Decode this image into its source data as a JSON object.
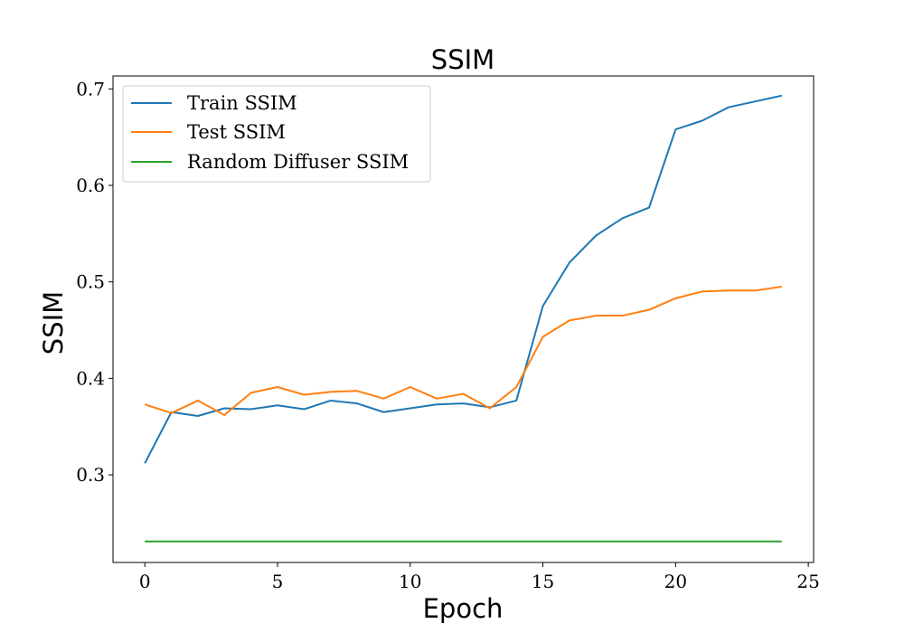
{
  "chart_data": {
    "type": "line",
    "title": "SSIM",
    "xlabel": "Epoch",
    "ylabel": "SSIM",
    "xlim": [
      -1.2,
      25.2
    ],
    "ylim": [
      0.2092,
      0.7134
    ],
    "xticks": [
      0,
      5,
      10,
      15,
      20,
      25
    ],
    "xtick_labels": [
      "0",
      "5",
      "10",
      "15",
      "20",
      "25"
    ],
    "yticks": [
      0.3,
      0.4,
      0.5,
      0.6,
      0.7
    ],
    "ytick_labels": [
      "0.3",
      "0.4",
      "0.5",
      "0.6",
      "0.7"
    ],
    "grid": false,
    "legend_position": "upper-left",
    "x": [
      0,
      1,
      2,
      3,
      4,
      5,
      6,
      7,
      8,
      9,
      10,
      11,
      12,
      13,
      14,
      15,
      16,
      17,
      18,
      19,
      20,
      21,
      22,
      23,
      24
    ],
    "series": [
      {
        "name": "Train SSIM",
        "color": "#1f77b4",
        "values": [
          0.312,
          0.365,
          0.361,
          0.369,
          0.368,
          0.372,
          0.368,
          0.377,
          0.374,
          0.365,
          0.369,
          0.373,
          0.374,
          0.37,
          0.377,
          0.475,
          0.52,
          0.548,
          0.566,
          0.577,
          0.658,
          0.667,
          0.681,
          0.687,
          0.693
        ]
      },
      {
        "name": "Test SSIM",
        "color": "#ff7f0e",
        "values": [
          0.373,
          0.364,
          0.377,
          0.362,
          0.385,
          0.391,
          0.383,
          0.386,
          0.387,
          0.379,
          0.391,
          0.379,
          0.384,
          0.369,
          0.391,
          0.443,
          0.46,
          0.465,
          0.465,
          0.471,
          0.483,
          0.49,
          0.491,
          0.491,
          0.495
        ]
      },
      {
        "name": "Random Diffuser SSIM",
        "color": "#2ca02c",
        "values": [
          0.231,
          0.231,
          0.231,
          0.231,
          0.231,
          0.231,
          0.231,
          0.231,
          0.231,
          0.231,
          0.231,
          0.231,
          0.231,
          0.231,
          0.231,
          0.231,
          0.231,
          0.231,
          0.231,
          0.231,
          0.231,
          0.231,
          0.231,
          0.231,
          0.231
        ]
      }
    ]
  }
}
